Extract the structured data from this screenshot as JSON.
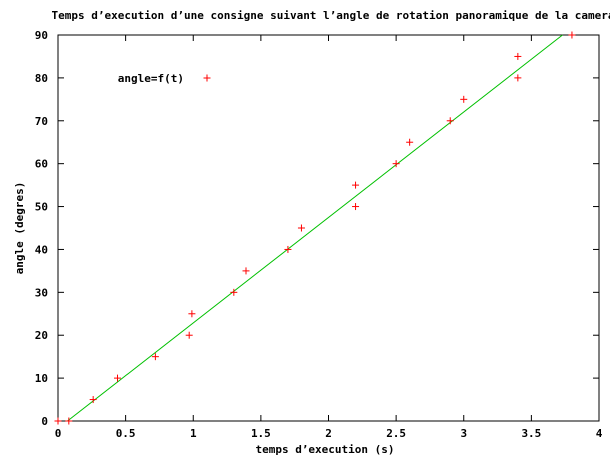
{
  "chart_data": {
    "type": "scatter",
    "title": "Temps d’execution d’une consigne suivant l’angle de rotation panoramique de la camera",
    "xlabel": "temps d’execution (s)",
    "ylabel": "angle (degres)",
    "xlim": [
      0,
      4
    ],
    "ylim": [
      0,
      90
    ],
    "x_ticks": [
      "0",
      "0.5",
      "1",
      "1.5",
      "2",
      "2.5",
      "3",
      "3.5",
      "4"
    ],
    "y_ticks": [
      "0",
      "10",
      "20",
      "30",
      "40",
      "50",
      "60",
      "70",
      "80",
      "90"
    ],
    "grid": false,
    "legend_position": "top-left",
    "series": [
      {
        "name": "angle=f(t)",
        "color": "#ff0000",
        "marker": "plus",
        "points": [
          {
            "x": 0.0,
            "y": 0
          },
          {
            "x": 0.08,
            "y": 0
          },
          {
            "x": 0.26,
            "y": 5
          },
          {
            "x": 0.44,
            "y": 10
          },
          {
            "x": 0.72,
            "y": 15
          },
          {
            "x": 0.97,
            "y": 20
          },
          {
            "x": 0.99,
            "y": 25
          },
          {
            "x": 1.3,
            "y": 30
          },
          {
            "x": 1.39,
            "y": 35
          },
          {
            "x": 1.7,
            "y": 40
          },
          {
            "x": 1.8,
            "y": 45
          },
          {
            "x": 2.2,
            "y": 50
          },
          {
            "x": 2.2,
            "y": 55
          },
          {
            "x": 2.5,
            "y": 60
          },
          {
            "x": 2.6,
            "y": 65
          },
          {
            "x": 2.9,
            "y": 70
          },
          {
            "x": 3.0,
            "y": 75
          },
          {
            "x": 3.4,
            "y": 80
          },
          {
            "x": 3.4,
            "y": 85
          },
          {
            "x": 3.8,
            "y": 90
          }
        ]
      },
      {
        "type": "line",
        "color": "#00c000",
        "points": [
          {
            "x": 0.07,
            "y": 0
          },
          {
            "x": 3.73,
            "y": 90
          }
        ]
      }
    ]
  }
}
